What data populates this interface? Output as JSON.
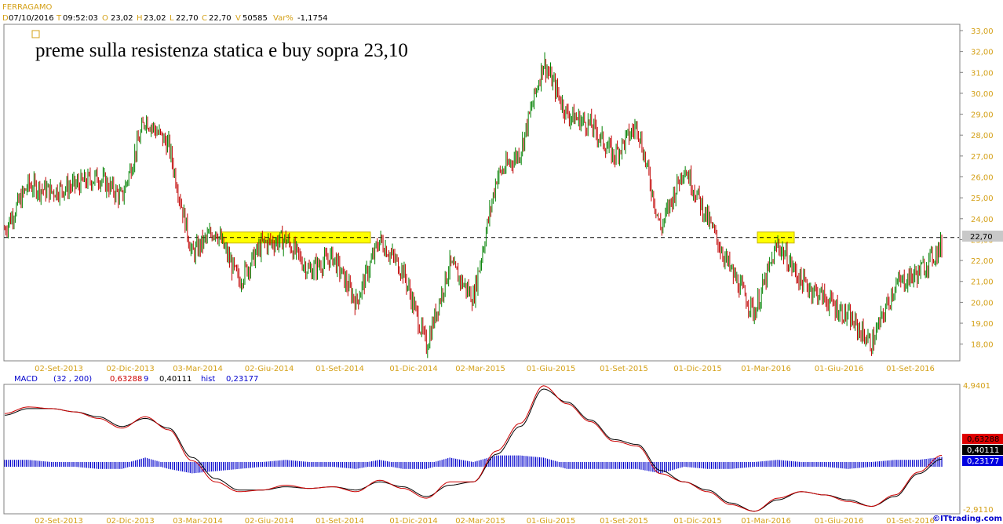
{
  "header": {
    "symbol": "FERRAGAMO",
    "d_label": "D",
    "d_value": "07/10/2016",
    "t_label": "T",
    "t_value": "09:52:03",
    "o_label": "O",
    "o_value": "23,02",
    "h_label": "H",
    "h_value": "23,02",
    "l_label": "L",
    "l_value": "22,70",
    "c_label": "C",
    "c_value": "22,70",
    "v_label": "V",
    "v_value": "50585",
    "var_label": "Var%",
    "var_value": "-1,1754"
  },
  "annotation": "preme sulla resistenza statica e buy sopra 23,10",
  "price_panel": {
    "y_ticks": [
      "33,00",
      "32,00",
      "31,00",
      "30,00",
      "29,00",
      "28,00",
      "27,00",
      "26,00",
      "25,00",
      "24,00",
      "23,00",
      "22,00",
      "21,00",
      "20,00",
      "19,00",
      "18,00"
    ],
    "last_price_label": "22,70",
    "resistance_level": 23.1
  },
  "x_ticks": [
    "02-Set-2013",
    "02-Dic-2013",
    "03-Mar-2014",
    "02-Giu-2014",
    "01-Set-2014",
    "01-Dic-2014",
    "02-Mar-2015",
    "01-Giu-2015",
    "01-Set-2015",
    "01-Dic-2015",
    "01-Mar-2016",
    "01-Giu-2016",
    "01-Set-2016"
  ],
  "macd_panel": {
    "name": "MACD",
    "params": "(32 , 200)",
    "macd_value": "0,63288",
    "signal_label": "9",
    "signal_value": "0,40111",
    "hist_label": "hist",
    "hist_value": "0,23177",
    "y_top": "4,9401",
    "y_bottom": "-2,9110",
    "tag_macd": "0,63288",
    "tag_signal": "0,40111",
    "tag_hist": "0,23177"
  },
  "watermark": "©ITtrading.com",
  "colors": {
    "up_candle": "#008000",
    "down_candle": "#c00000",
    "axis_text": "#d4a017",
    "highlight": "#ffff00",
    "macd_line": "#cc0000",
    "signal_line": "#000000",
    "histogram": "#0000cc"
  },
  "chart_data": [
    {
      "type": "candlestick",
      "title": "FERRAGAMO",
      "x": [
        "2013-06",
        "2013-07",
        "2013-08",
        "2013-09",
        "2013-10",
        "2013-11",
        "2013-12",
        "2014-01",
        "2014-02",
        "2014-03",
        "2014-04",
        "2014-05",
        "2014-06",
        "2014-07",
        "2014-08",
        "2014-09",
        "2014-10",
        "2014-11",
        "2014-12",
        "2015-01",
        "2015-02",
        "2015-03",
        "2015-04",
        "2015-05",
        "2015-06",
        "2015-07",
        "2015-08",
        "2015-09",
        "2015-10",
        "2015-11",
        "2015-12",
        "2016-01",
        "2016-02",
        "2016-03",
        "2016-04",
        "2016-05",
        "2016-06",
        "2016-07",
        "2016-08",
        "2016-09",
        "2016-10"
      ],
      "close": [
        23.5,
        25.6,
        25.3,
        25.6,
        26.0,
        25.0,
        28.8,
        27.5,
        22.3,
        23.5,
        21.0,
        22.8,
        23.0,
        21.5,
        22.2,
        20.0,
        23.0,
        21.5,
        17.9,
        21.8,
        20.2,
        26.0,
        27.2,
        31.5,
        29.0,
        28.5,
        27.0,
        28.5,
        23.5,
        26.5,
        24.0,
        21.5,
        19.5,
        22.8,
        21.0,
        20.2,
        19.3,
        18.0,
        20.8,
        21.4,
        22.7
      ],
      "ylim": [
        17.2,
        33.3
      ],
      "resistance": 23.1
    },
    {
      "type": "line",
      "title": "MACD",
      "x": [
        "2013-06",
        "2013-07",
        "2013-08",
        "2013-09",
        "2013-10",
        "2013-11",
        "2013-12",
        "2014-01",
        "2014-02",
        "2014-03",
        "2014-04",
        "2014-05",
        "2014-06",
        "2014-07",
        "2014-08",
        "2014-09",
        "2014-10",
        "2014-11",
        "2014-12",
        "2015-01",
        "2015-02",
        "2015-03",
        "2015-04",
        "2015-05",
        "2015-06",
        "2015-07",
        "2015-08",
        "2015-09",
        "2015-10",
        "2015-11",
        "2015-12",
        "2016-01",
        "2016-02",
        "2016-03",
        "2016-04",
        "2016-05",
        "2016-06",
        "2016-07",
        "2016-08",
        "2016-09",
        "2016-10"
      ],
      "series": [
        {
          "name": "MACD",
          "values": [
            3.2,
            3.6,
            3.5,
            3.3,
            2.9,
            2.3,
            3.0,
            2.2,
            0.3,
            -1.0,
            -1.6,
            -1.5,
            -1.2,
            -1.4,
            -1.3,
            -1.6,
            -0.9,
            -1.4,
            -2.0,
            -1.0,
            -1.0,
            0.9,
            2.6,
            4.9,
            3.8,
            2.7,
            1.5,
            1.2,
            -0.5,
            -1.0,
            -1.6,
            -2.4,
            -2.8,
            -2.0,
            -1.6,
            -1.8,
            -2.2,
            -2.5,
            -1.8,
            -0.4,
            0.63
          ]
        },
        {
          "name": "9",
          "values": [
            3.1,
            3.5,
            3.5,
            3.3,
            3.0,
            2.4,
            2.9,
            2.3,
            0.5,
            -0.8,
            -1.5,
            -1.5,
            -1.3,
            -1.4,
            -1.3,
            -1.5,
            -1.0,
            -1.3,
            -1.9,
            -1.2,
            -1.0,
            0.7,
            2.4,
            4.7,
            3.9,
            2.8,
            1.6,
            1.3,
            -0.3,
            -1.0,
            -1.5,
            -2.3,
            -2.8,
            -2.1,
            -1.6,
            -1.8,
            -2.1,
            -2.5,
            -1.9,
            -0.5,
            0.4
          ]
        }
      ],
      "histogram": [
        0.1,
        0.1,
        0.0,
        0.0,
        -0.1,
        -0.1,
        0.2,
        -0.1,
        -0.3,
        -0.2,
        -0.1,
        0.0,
        0.1,
        0.0,
        0.0,
        -0.1,
        0.1,
        -0.1,
        -0.1,
        0.2,
        0.0,
        0.3,
        0.3,
        0.2,
        -0.1,
        -0.1,
        -0.1,
        -0.1,
        -0.3,
        0.0,
        -0.1,
        -0.1,
        0.0,
        0.1,
        0.0,
        0.0,
        -0.1,
        0.0,
        0.1,
        0.1,
        0.23
      ],
      "ylim": [
        -2.911,
        4.9401
      ]
    }
  ]
}
